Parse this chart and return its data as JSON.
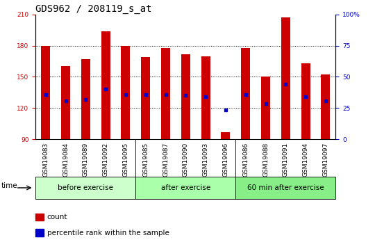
{
  "title": "GDS962 / 208119_s_at",
  "samples": [
    "GSM19083",
    "GSM19084",
    "GSM19089",
    "GSM19092",
    "GSM19095",
    "GSM19085",
    "GSM19087",
    "GSM19090",
    "GSM19093",
    "GSM19096",
    "GSM19086",
    "GSM19088",
    "GSM19091",
    "GSM19094",
    "GSM19097"
  ],
  "bar_tops": [
    180,
    160,
    167,
    194,
    180,
    169,
    178,
    172,
    170,
    97,
    178,
    150,
    207,
    163,
    152
  ],
  "blue_markers": [
    133,
    127,
    128,
    138,
    133,
    133,
    133,
    132,
    131,
    118,
    133,
    124,
    143,
    131,
    127
  ],
  "bar_base": 90,
  "ymin": 90,
  "ymax": 210,
  "yticks_left": [
    90,
    120,
    150,
    180,
    210
  ],
  "yticks_right_pct": [
    0,
    25,
    50,
    75,
    100
  ],
  "bar_color": "#cc0000",
  "blue_color": "#0000cc",
  "groups": [
    {
      "label": "before exercise",
      "start": 0,
      "end": 5,
      "color": "#ccffcc"
    },
    {
      "label": "after exercise",
      "start": 5,
      "end": 10,
      "color": "#aaffaa"
    },
    {
      "label": "60 min after exercise",
      "start": 10,
      "end": 15,
      "color": "#88ee88"
    }
  ],
  "bar_width": 0.45,
  "title_fontsize": 10,
  "tick_fontsize": 6.5,
  "plot_bg": "#ffffff",
  "tick_area_bg": "#c8c8c8",
  "left_tick_color": "#cc0000",
  "right_tick_color": "#0000cc",
  "legend_items": [
    {
      "color": "#cc0000",
      "label": "count"
    },
    {
      "color": "#0000cc",
      "label": "percentile rank within the sample"
    }
  ]
}
